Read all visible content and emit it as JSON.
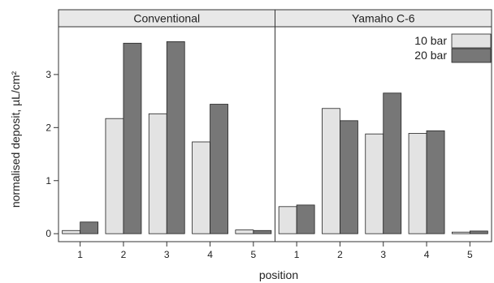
{
  "chart_data": {
    "type": "bar",
    "xlabel": "position",
    "ylabel": "normalised deposit,  µL/cm²",
    "ylim": [
      -0.15,
      3.9
    ],
    "yticks": [
      "0",
      "1",
      "2",
      "3"
    ],
    "grid": false,
    "legend_placement": "top-right",
    "categories": [
      "1",
      "2",
      "3",
      "4",
      "5"
    ],
    "panels": [
      {
        "title": "Conventional",
        "series": [
          {
            "name": "10 bar",
            "values": [
              0.06,
              2.17,
              2.26,
              1.73,
              0.07
            ]
          },
          {
            "name": "20 bar",
            "values": [
              0.22,
              3.59,
              3.62,
              2.44,
              0.06
            ]
          }
        ]
      },
      {
        "title": "Yamaho C-6",
        "series": [
          {
            "name": "10 bar",
            "values": [
              0.51,
              2.36,
              1.88,
              1.89,
              0.03
            ]
          },
          {
            "name": "20 bar",
            "values": [
              0.54,
              2.13,
              2.65,
              1.94,
              0.05
            ]
          }
        ]
      }
    ],
    "colors": {
      "10 bar": "#e3e3e3",
      "20 bar": "#777777",
      "strip": "#e8e8e8",
      "frame": "#333333"
    }
  }
}
